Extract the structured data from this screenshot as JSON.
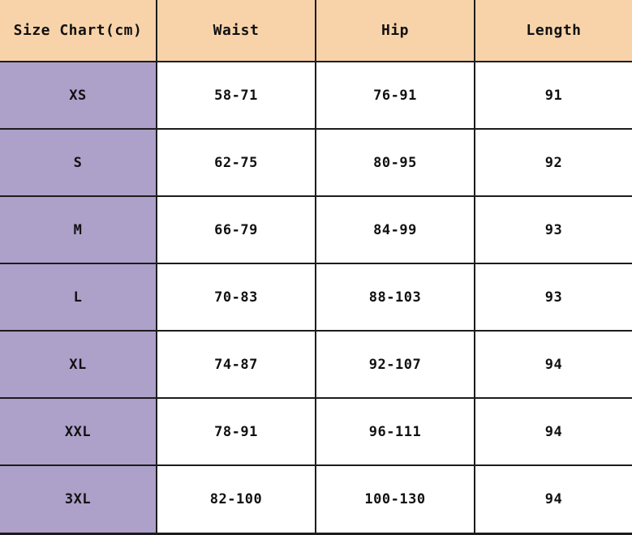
{
  "chart_data": {
    "type": "table",
    "title": "Size Chart(cm)",
    "columns": [
      "Size Chart(cm)",
      "Waist",
      "Hip",
      "Length"
    ],
    "rows": [
      [
        "XS",
        "58-71",
        "76-91",
        "91"
      ],
      [
        "S",
        "62-75",
        "80-95",
        "92"
      ],
      [
        "M",
        "66-79",
        "84-99",
        "93"
      ],
      [
        "L",
        "70-83",
        "88-103",
        "93"
      ],
      [
        "XL",
        "74-87",
        "92-107",
        "94"
      ],
      [
        "XXL",
        "78-91",
        "96-111",
        "94"
      ],
      [
        "3XL",
        "82-100",
        "100-130",
        "94"
      ]
    ],
    "layout": {
      "header_background": "#f8d3a9",
      "size_column_background": "#ada0c9",
      "cell_background": "#ffffff",
      "grid_color": "#1c1c1c",
      "text_color": "#111111",
      "outer_border": "bottom-only"
    }
  }
}
